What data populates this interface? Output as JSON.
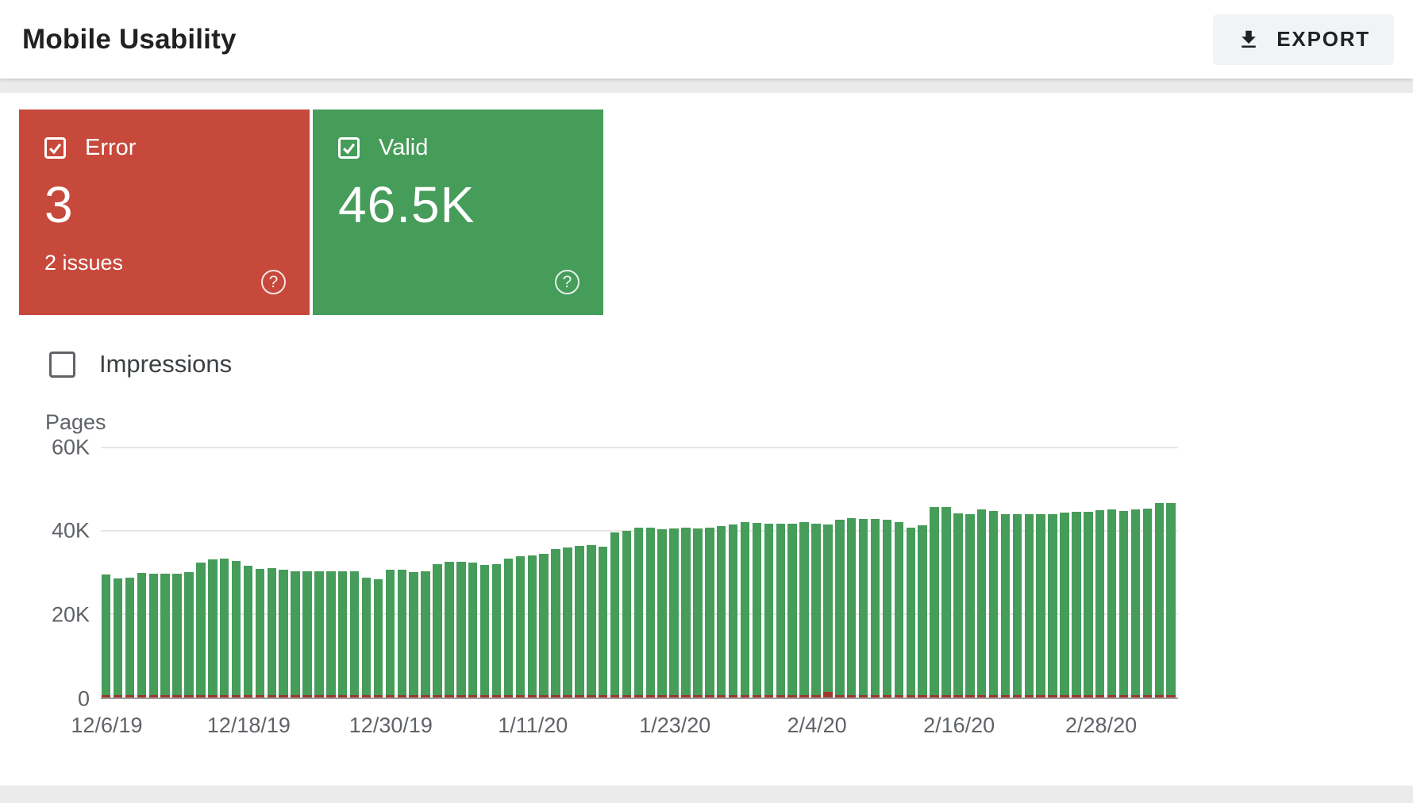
{
  "header": {
    "title": "Mobile Usability",
    "export_label": "EXPORT"
  },
  "cards": {
    "error": {
      "label": "Error",
      "value": "3",
      "sub": "2 issues"
    },
    "valid": {
      "label": "Valid",
      "value": "46.5K"
    }
  },
  "impressions_label": "Impressions",
  "icons": {
    "help": "?"
  },
  "colors": {
    "error-red": "#c7493c",
    "valid-green": "#469c59",
    "error-bar": "#9c3a2b",
    "axis-line": "#9e9e9e",
    "grid-line": "#e7e7e7",
    "secondary-text": "#5f6368"
  },
  "chart_data": {
    "type": "bar",
    "title": "",
    "ylabel": "Pages",
    "xlabel": "",
    "ylim": [
      0,
      60000
    ],
    "yticks": [
      "60K",
      "40K",
      "20K",
      "0"
    ],
    "ytick_values": [
      60000,
      40000,
      20000,
      0
    ],
    "n_points": 91,
    "x_unit": "day",
    "x_tick_labels": [
      "12/6/19",
      "12/18/19",
      "12/30/19",
      "1/11/20",
      "1/23/20",
      "2/4/20",
      "2/16/20",
      "2/28/20"
    ],
    "x_tick_indices": [
      0,
      12,
      24,
      36,
      48,
      60,
      72,
      84
    ],
    "legend": "none",
    "grid": "horizontal",
    "series": [
      {
        "name": "Valid",
        "color": "#469c59",
        "values": [
          29500,
          28500,
          28700,
          29800,
          29700,
          29600,
          29700,
          30000,
          32200,
          33000,
          33200,
          32600,
          31500,
          30700,
          31000,
          30500,
          30200,
          30200,
          30100,
          30200,
          30100,
          30200,
          28600,
          28200,
          30500,
          30600,
          30000,
          30100,
          32000,
          32400,
          32500,
          32200,
          31800,
          32000,
          33200,
          33800,
          34000,
          34300,
          35500,
          36000,
          36300,
          36400,
          36100,
          39500,
          40000,
          40600,
          40600,
          40200,
          40400,
          40600,
          40500,
          40600,
          41000,
          41500,
          42000,
          41800,
          41600,
          41700,
          41600,
          42000,
          41600,
          41500,
          42600,
          43000,
          42800,
          42700,
          42600,
          42000,
          40700,
          41200,
          45600,
          45700,
          44100,
          44000,
          45000,
          44600,
          44000,
          44000,
          44000,
          43900,
          44000,
          44300,
          44400,
          44400,
          44900,
          45000,
          44600,
          45000,
          45300,
          46600,
          46500
        ]
      },
      {
        "name": "Error",
        "color": "#9c3a2b",
        "values": [
          3,
          3,
          3,
          3,
          3,
          3,
          3,
          3,
          3,
          3,
          3,
          3,
          3,
          3,
          3,
          3,
          3,
          3,
          3,
          3,
          3,
          3,
          3,
          3,
          3,
          3,
          3,
          3,
          3,
          3,
          3,
          3,
          3,
          3,
          3,
          3,
          3,
          3,
          3,
          3,
          3,
          3,
          3,
          3,
          3,
          3,
          3,
          3,
          3,
          3,
          3,
          3,
          3,
          3,
          3,
          3,
          3,
          3,
          3,
          3,
          3,
          1200,
          3,
          3,
          3,
          3,
          3,
          3,
          3,
          3,
          3,
          3,
          3,
          3,
          3,
          3,
          3,
          3,
          3,
          3,
          3,
          3,
          3,
          3,
          3,
          3,
          3,
          3,
          3,
          3,
          3
        ]
      }
    ]
  }
}
